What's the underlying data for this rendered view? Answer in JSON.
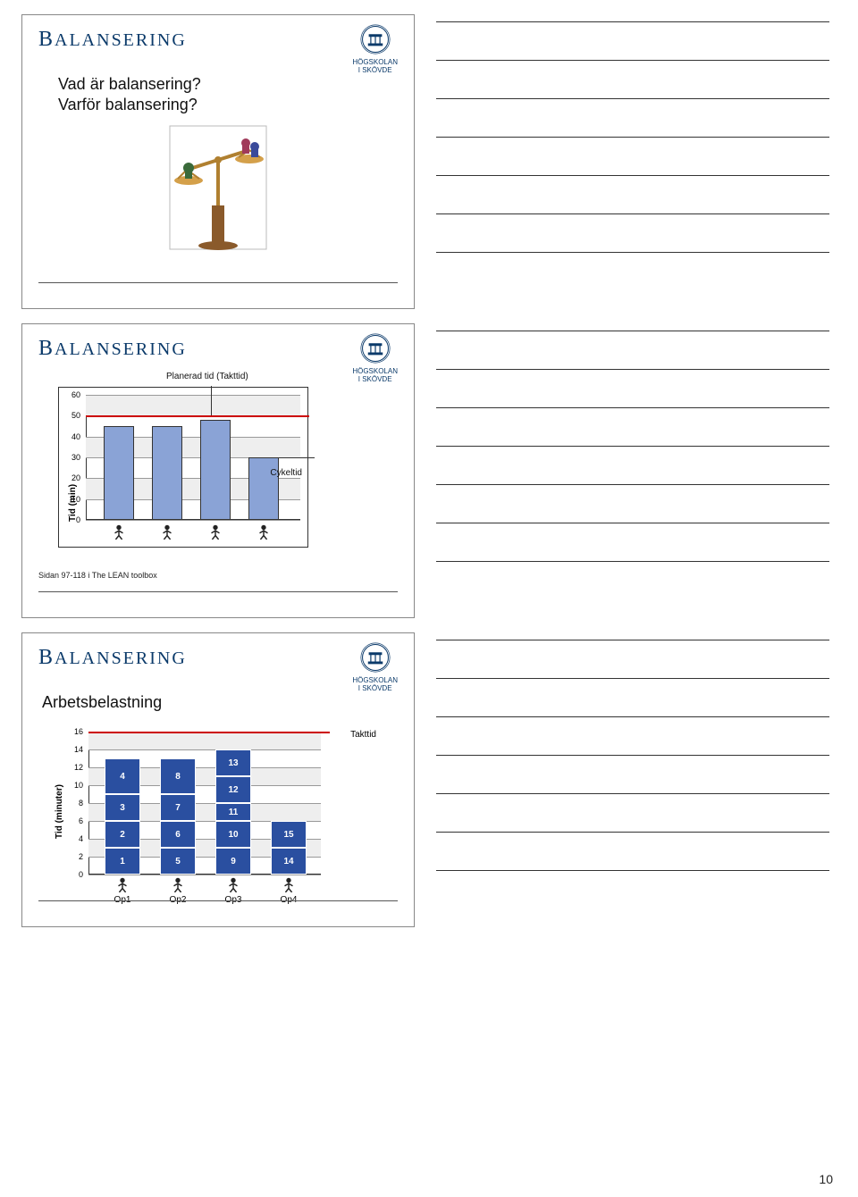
{
  "page_number": "10",
  "logo": {
    "line1": "HÖGSKOLAN",
    "line2": "I SKÖVDE"
  },
  "colors": {
    "title": "#0b3a6a",
    "bar_light": "#8aa3d6",
    "bar_dark": "#2a4fa0",
    "takt_line": "#cc0000",
    "grid": "#999999",
    "grid_bg": "#eeeeee"
  },
  "slide1": {
    "title": "BALANSERING",
    "q1": "Vad är balansering?",
    "q2": "Varför balansering?"
  },
  "slide2": {
    "title": "BALANSERING",
    "ylabel": "Tid (min)",
    "label_planerad": "Planerad tid (Takttid)",
    "label_cykeltid": "Cykeltid",
    "footnote": "Sidan 97-118 i The LEAN toolbox",
    "ymax": 60,
    "yticks": [
      0,
      10,
      20,
      30,
      40,
      50,
      60
    ],
    "takt": 50,
    "bars": [
      45,
      45,
      48,
      30
    ],
    "n_workers": 4
  },
  "slide3": {
    "title": "BALANSERING",
    "heading": "Arbetsbelastning",
    "ylabel": "Tid (minuter)",
    "label_takttid": "Takttid",
    "ymax": 16,
    "yticks": [
      0,
      2,
      4,
      6,
      8,
      10,
      12,
      14,
      16
    ],
    "takt": 16,
    "xlabels": [
      "Op1",
      "Op2",
      "Op3",
      "Op4"
    ],
    "stacks": [
      [
        {
          "label": "1",
          "h": 3
        },
        {
          "label": "2",
          "h": 3
        },
        {
          "label": "3",
          "h": 3
        },
        {
          "label": "4",
          "h": 4
        }
      ],
      [
        {
          "label": "5",
          "h": 3
        },
        {
          "label": "6",
          "h": 3
        },
        {
          "label": "7",
          "h": 3
        },
        {
          "label": "8",
          "h": 4
        }
      ],
      [
        {
          "label": "9",
          "h": 3
        },
        {
          "label": "10",
          "h": 3
        },
        {
          "label": "11",
          "h": 2
        },
        {
          "label": "12",
          "h": 3
        },
        {
          "label": "13",
          "h": 3
        }
      ],
      [
        {
          "label": "14",
          "h": 3
        },
        {
          "label": "15",
          "h": 3
        }
      ]
    ]
  }
}
